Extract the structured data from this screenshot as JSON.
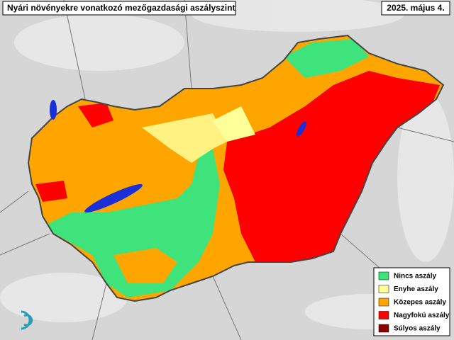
{
  "header": {
    "title": "Nyári növényekre vonatkozó mezőgazdasági aszályszint",
    "date": "2025. május 4."
  },
  "legend": {
    "items": [
      {
        "label": "Nincs aszály",
        "color": "#3ee37c"
      },
      {
        "label": "Enyhe aszály",
        "color": "#ffff99"
      },
      {
        "label": "Közepes aszály",
        "color": "#ffa500"
      },
      {
        "label": "Nagyfokú aszály",
        "color": "#ff0000"
      },
      {
        "label": "Súlyos aszály",
        "color": "#8b0000"
      }
    ]
  }
}
